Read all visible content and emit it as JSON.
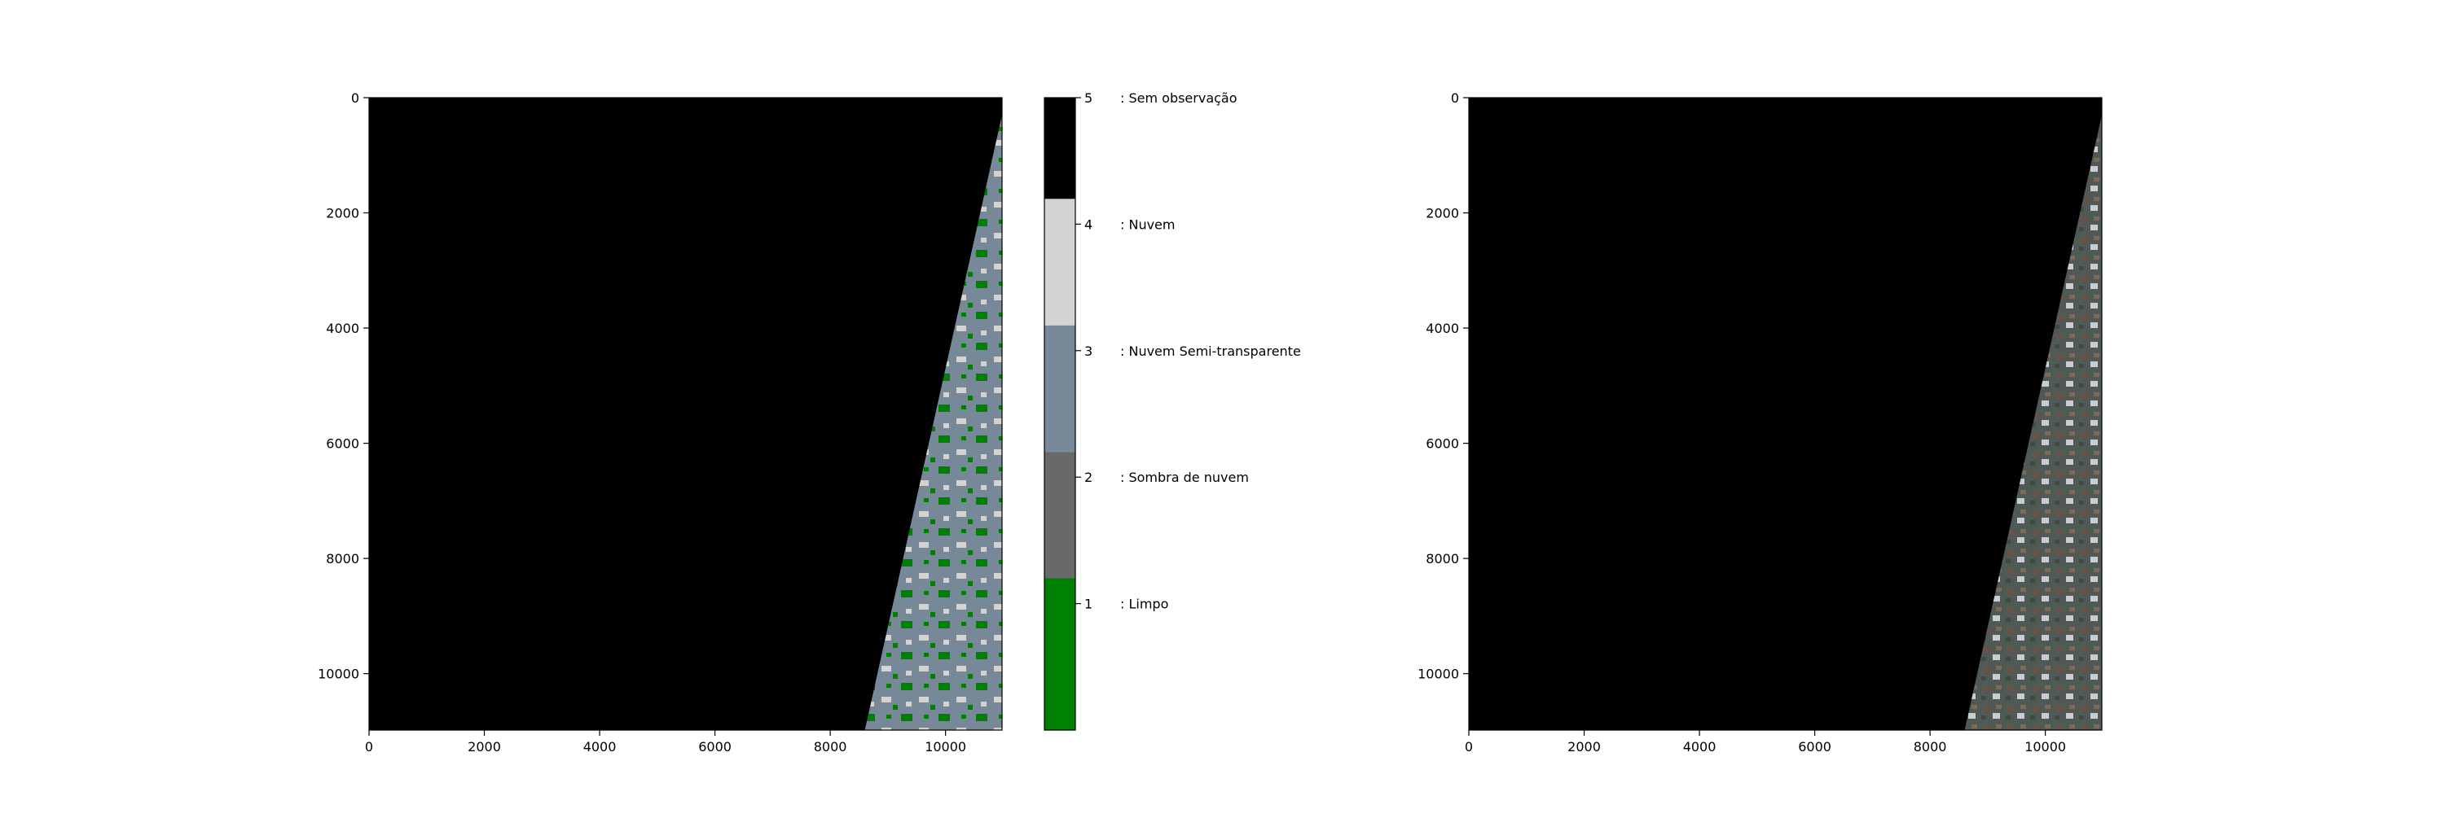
{
  "chart_data": [
    {
      "type": "heatmap",
      "title": "",
      "x_ticks": [
        0,
        2000,
        4000,
        6000,
        8000,
        10000
      ],
      "y_ticks": [
        0,
        2000,
        4000,
        6000,
        8000,
        10000
      ],
      "xlim": [
        0,
        10980
      ],
      "ylim": [
        10980,
        0
      ],
      "no_data_edge": {
        "top_x": 10980,
        "top_y": 300,
        "bottom_x": 8600,
        "bottom_y": 10980
      },
      "colorbar": {
        "ticks": [
          1,
          2,
          3,
          4,
          5
        ],
        "range": [
          0,
          5
        ],
        "classes": [
          {
            "value": 1,
            "label": ": Limpo",
            "color": "#008000"
          },
          {
            "value": 2,
            "label": ": Sombra de nuvem",
            "color": "#696969"
          },
          {
            "value": 3,
            "label": ": Nuvem Semi-transparente",
            "color": "#778899"
          },
          {
            "value": 4,
            "label": ": Nuvem",
            "color": "#d3d3d3"
          },
          {
            "value": 5,
            "label": ": Sem observação",
            "color": "#000000"
          }
        ]
      }
    },
    {
      "type": "heatmap",
      "title": "",
      "x_ticks": [
        0,
        2000,
        4000,
        6000,
        8000,
        10000
      ],
      "y_ticks": [
        0,
        2000,
        4000,
        6000,
        8000,
        10000
      ],
      "xlim": [
        0,
        10980
      ],
      "ylim": [
        10980,
        0
      ],
      "no_data_edge": {
        "top_x": 10980,
        "top_y": 300,
        "bottom_x": 8600,
        "bottom_y": 10980
      }
    }
  ]
}
